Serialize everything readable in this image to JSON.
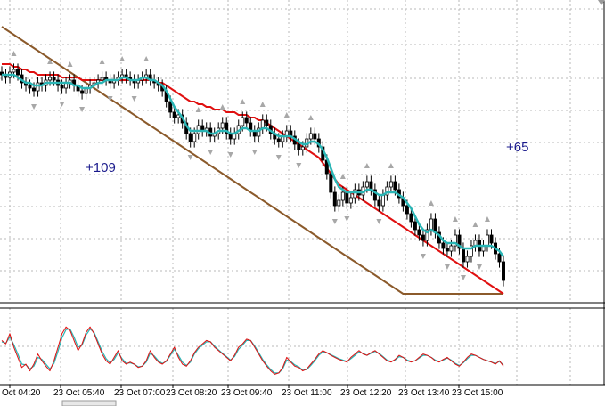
{
  "chart_data": {
    "type": "line",
    "title": "",
    "annotations": [
      "+109",
      "+65"
    ],
    "x_tick_labels": [
      "Oct 04:20",
      "23 Oct 05:40",
      "23 Oct 07:00",
      "23 Oct 08:20",
      "23 Oct 09:40",
      "23 Oct 11:00",
      "23 Oct 12:20",
      "23 Oct 13:40",
      "23 Oct 15:00"
    ],
    "grid": true,
    "colors": {
      "candles": "#000000",
      "ma_fast": "#2ab5b5",
      "ma_mid": "#e01010",
      "ma_slow": "#8b5a2b",
      "oscillator_main": "#e01010",
      "oscillator_signal": "#2ab5b5",
      "fractals": "#a8a8a8",
      "annotation": "#1a1a8c"
    },
    "price_panel": {
      "ylim": [
        0,
        100
      ],
      "candles_close": [
        82,
        81,
        83,
        84,
        82,
        79,
        78,
        77,
        76,
        79,
        78,
        80,
        81,
        80,
        78,
        77,
        79,
        80,
        78,
        76,
        75,
        77,
        78,
        79,
        80,
        81,
        80,
        79,
        80,
        81,
        82,
        81,
        80,
        79,
        80,
        81,
        82,
        80,
        79,
        78,
        76,
        72,
        68,
        66,
        67,
        64,
        60,
        57,
        60,
        63,
        61,
        62,
        59,
        60,
        62,
        64,
        60,
        58,
        60,
        63,
        66,
        64,
        61,
        59,
        62,
        65,
        63,
        60,
        58,
        57,
        59,
        61,
        59,
        56,
        54,
        55,
        58,
        60,
        58,
        55,
        50,
        45,
        38,
        33,
        35,
        38,
        34,
        36,
        39,
        37,
        40,
        42,
        39,
        35,
        33,
        37,
        40,
        42,
        39,
        36,
        33,
        30,
        27,
        24,
        22,
        20,
        24,
        28,
        23,
        19,
        17,
        16,
        18,
        22,
        17,
        12,
        14,
        18,
        20,
        16,
        18,
        22,
        19,
        15,
        12,
        5
      ],
      "ma_fast": [
        82,
        82,
        82,
        82,
        81,
        80,
        79,
        79,
        78,
        78,
        78,
        79,
        79,
        79,
        79,
        79,
        79,
        79,
        78,
        78,
        77,
        77,
        77,
        78,
        79,
        79,
        80,
        80,
        80,
        80,
        81,
        81,
        80,
        80,
        80,
        81,
        81,
        80,
        80,
        79,
        78,
        76,
        73,
        70,
        68,
        66,
        63,
        61,
        61,
        61,
        61,
        61,
        60,
        60,
        61,
        61,
        61,
        60,
        60,
        61,
        62,
        62,
        61,
        61,
        61,
        62,
        62,
        61,
        60,
        59,
        59,
        59,
        59,
        58,
        57,
        56,
        56,
        57,
        57,
        56,
        54,
        51,
        47,
        43,
        40,
        39,
        38,
        38,
        38,
        38,
        38,
        39,
        39,
        38,
        37,
        37,
        38,
        38,
        38,
        37,
        36,
        34,
        32,
        29,
        26,
        24,
        23,
        24,
        23,
        22,
        20,
        19,
        19,
        19,
        18,
        17,
        17,
        17,
        18,
        18,
        18,
        18,
        18,
        17,
        16,
        14
      ],
      "ma_mid": [
        86,
        86,
        86,
        85,
        85,
        84,
        84,
        83,
        83,
        82,
        82,
        82,
        82,
        82,
        82,
        81,
        81,
        81,
        81,
        81,
        80,
        80,
        80,
        80,
        80,
        80,
        80,
        80,
        80,
        80,
        80,
        80,
        80,
        80,
        80,
        80,
        80,
        80,
        80,
        79,
        79,
        78,
        77,
        76,
        75,
        74,
        73,
        72,
        72,
        71,
        71,
        70,
        70,
        69,
        69,
        69,
        68,
        68,
        68,
        67,
        67,
        67,
        66,
        66,
        65,
        65,
        64,
        63,
        62,
        61,
        60,
        59,
        58,
        57,
        56,
        55,
        54,
        53,
        52,
        51,
        49,
        47,
        45,
        43,
        41,
        40,
        39,
        38,
        37,
        36,
        35,
        34,
        33,
        32,
        31,
        30,
        29,
        28,
        27,
        26,
        25,
        24,
        23,
        22,
        21,
        20,
        19,
        18,
        17,
        16,
        15,
        14,
        13,
        12,
        11,
        10,
        9,
        8,
        7,
        6,
        5,
        4,
        3,
        2,
        1,
        0
      ],
      "ma_slow": [
        100,
        99,
        98,
        97,
        96,
        95,
        94,
        93,
        92,
        91,
        90,
        89,
        88,
        87,
        86,
        85,
        84,
        83,
        82,
        81,
        80,
        79,
        78,
        77,
        76,
        75,
        74,
        73,
        72,
        71,
        70,
        69,
        68,
        67,
        66,
        65,
        64,
        63,
        62,
        61,
        60,
        59,
        58,
        57,
        56,
        55,
        54,
        53,
        52,
        51,
        50,
        49,
        48,
        47,
        46,
        45,
        44,
        43,
        42,
        41,
        40,
        39,
        38,
        37,
        36,
        35,
        34,
        33,
        32,
        31,
        30,
        29,
        28,
        27,
        26,
        25,
        24,
        23,
        22,
        21,
        20,
        19,
        18,
        17,
        16,
        15,
        14,
        13,
        12,
        11,
        10,
        9,
        8,
        7,
        6,
        5,
        4,
        3,
        2,
        1,
        0,
        0,
        0,
        0,
        0,
        0,
        0,
        0,
        0,
        0,
        0,
        0,
        0,
        0,
        0,
        0,
        0,
        0,
        0,
        0,
        0,
        0,
        0,
        0,
        0,
        0
      ]
    },
    "oscillator_panel": {
      "ylim": [
        0,
        100
      ],
      "main": [
        60,
        55,
        70,
        50,
        35,
        20,
        25,
        15,
        25,
        40,
        30,
        22,
        15,
        30,
        50,
        70,
        80,
        75,
        60,
        45,
        55,
        72,
        80,
        70,
        55,
        40,
        30,
        25,
        35,
        45,
        30,
        25,
        28,
        25,
        20,
        22,
        30,
        45,
        35,
        28,
        25,
        30,
        40,
        50,
        35,
        25,
        22,
        30,
        42,
        50,
        55,
        60,
        58,
        50,
        45,
        40,
        35,
        30,
        38,
        50,
        55,
        62,
        60,
        50,
        40,
        30,
        22,
        15,
        10,
        12,
        20,
        35,
        28,
        22,
        20,
        15,
        18,
        25,
        32,
        40,
        45,
        42,
        38,
        35,
        32,
        30,
        28,
        35,
        40,
        45,
        40,
        38,
        42,
        45,
        40,
        35,
        30,
        28,
        32,
        38,
        35,
        30,
        28,
        30,
        35,
        40,
        38,
        35,
        30,
        28,
        32,
        35,
        30,
        25,
        22,
        28,
        35,
        40,
        38,
        35,
        32,
        30,
        28,
        25,
        30,
        22
      ],
      "signal": [
        58,
        56,
        65,
        54,
        40,
        25,
        24,
        18,
        22,
        35,
        32,
        25,
        18,
        26,
        44,
        64,
        76,
        77,
        65,
        50,
        53,
        68,
        77,
        72,
        58,
        44,
        33,
        27,
        32,
        42,
        33,
        26,
        27,
        25,
        21,
        22,
        28,
        41,
        37,
        30,
        26,
        29,
        38,
        47,
        38,
        28,
        23,
        28,
        40,
        48,
        53,
        58,
        58,
        52,
        46,
        41,
        36,
        31,
        36,
        47,
        53,
        60,
        60,
        52,
        42,
        32,
        24,
        17,
        12,
        12,
        18,
        31,
        29,
        24,
        21,
        16,
        17,
        23,
        30,
        38,
        43,
        42,
        39,
        36,
        33,
        31,
        29,
        33,
        38,
        43,
        41,
        38,
        41,
        44,
        41,
        36,
        31,
        29,
        31,
        36,
        35,
        31,
        29,
        30,
        34,
        38,
        38,
        35,
        31,
        29,
        31,
        34,
        31,
        26,
        23,
        27,
        33,
        38,
        38,
        35,
        32,
        30,
        28,
        26,
        29,
        24
      ]
    }
  }
}
